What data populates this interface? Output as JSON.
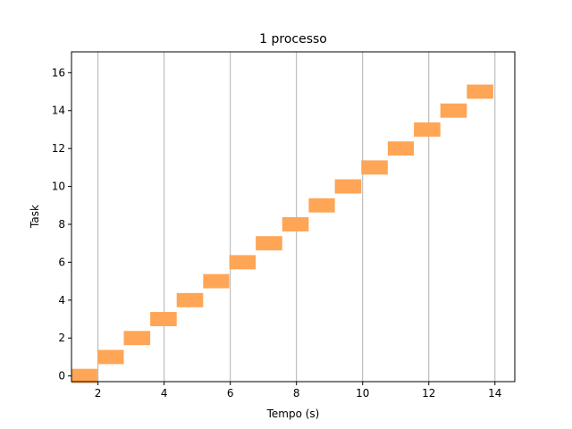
{
  "chart_data": {
    "type": "gantt",
    "title": "1 processo",
    "xlabel": "Tempo (s)",
    "ylabel": "Task",
    "xlim": [
      1.2,
      14.6
    ],
    "ylim": [
      -0.3,
      17.1
    ],
    "xticks": [
      2,
      4,
      6,
      8,
      10,
      12,
      14
    ],
    "yticks": [
      0,
      2,
      4,
      6,
      8,
      10,
      12,
      14,
      16
    ],
    "grid": "vertical",
    "bar_color": "#ffa556",
    "grid_color": "#b0b0b0",
    "tasks": [
      {
        "task": 0,
        "start": 1.2,
        "end": 1.98
      },
      {
        "task": 1,
        "start": 1.98,
        "end": 2.78
      },
      {
        "task": 2,
        "start": 2.78,
        "end": 3.58
      },
      {
        "task": 3,
        "start": 3.58,
        "end": 4.38
      },
      {
        "task": 4,
        "start": 4.38,
        "end": 5.18
      },
      {
        "task": 5,
        "start": 5.18,
        "end": 5.97
      },
      {
        "task": 6,
        "start": 5.97,
        "end": 6.77
      },
      {
        "task": 7,
        "start": 6.77,
        "end": 7.57
      },
      {
        "task": 8,
        "start": 7.57,
        "end": 8.37
      },
      {
        "task": 9,
        "start": 8.37,
        "end": 9.16
      },
      {
        "task": 10,
        "start": 9.16,
        "end": 9.96
      },
      {
        "task": 11,
        "start": 9.96,
        "end": 10.76
      },
      {
        "task": 12,
        "start": 10.76,
        "end": 11.55
      },
      {
        "task": 13,
        "start": 11.55,
        "end": 12.35
      },
      {
        "task": 14,
        "start": 12.35,
        "end": 13.15
      },
      {
        "task": 15,
        "start": 13.15,
        "end": 13.95
      }
    ]
  }
}
